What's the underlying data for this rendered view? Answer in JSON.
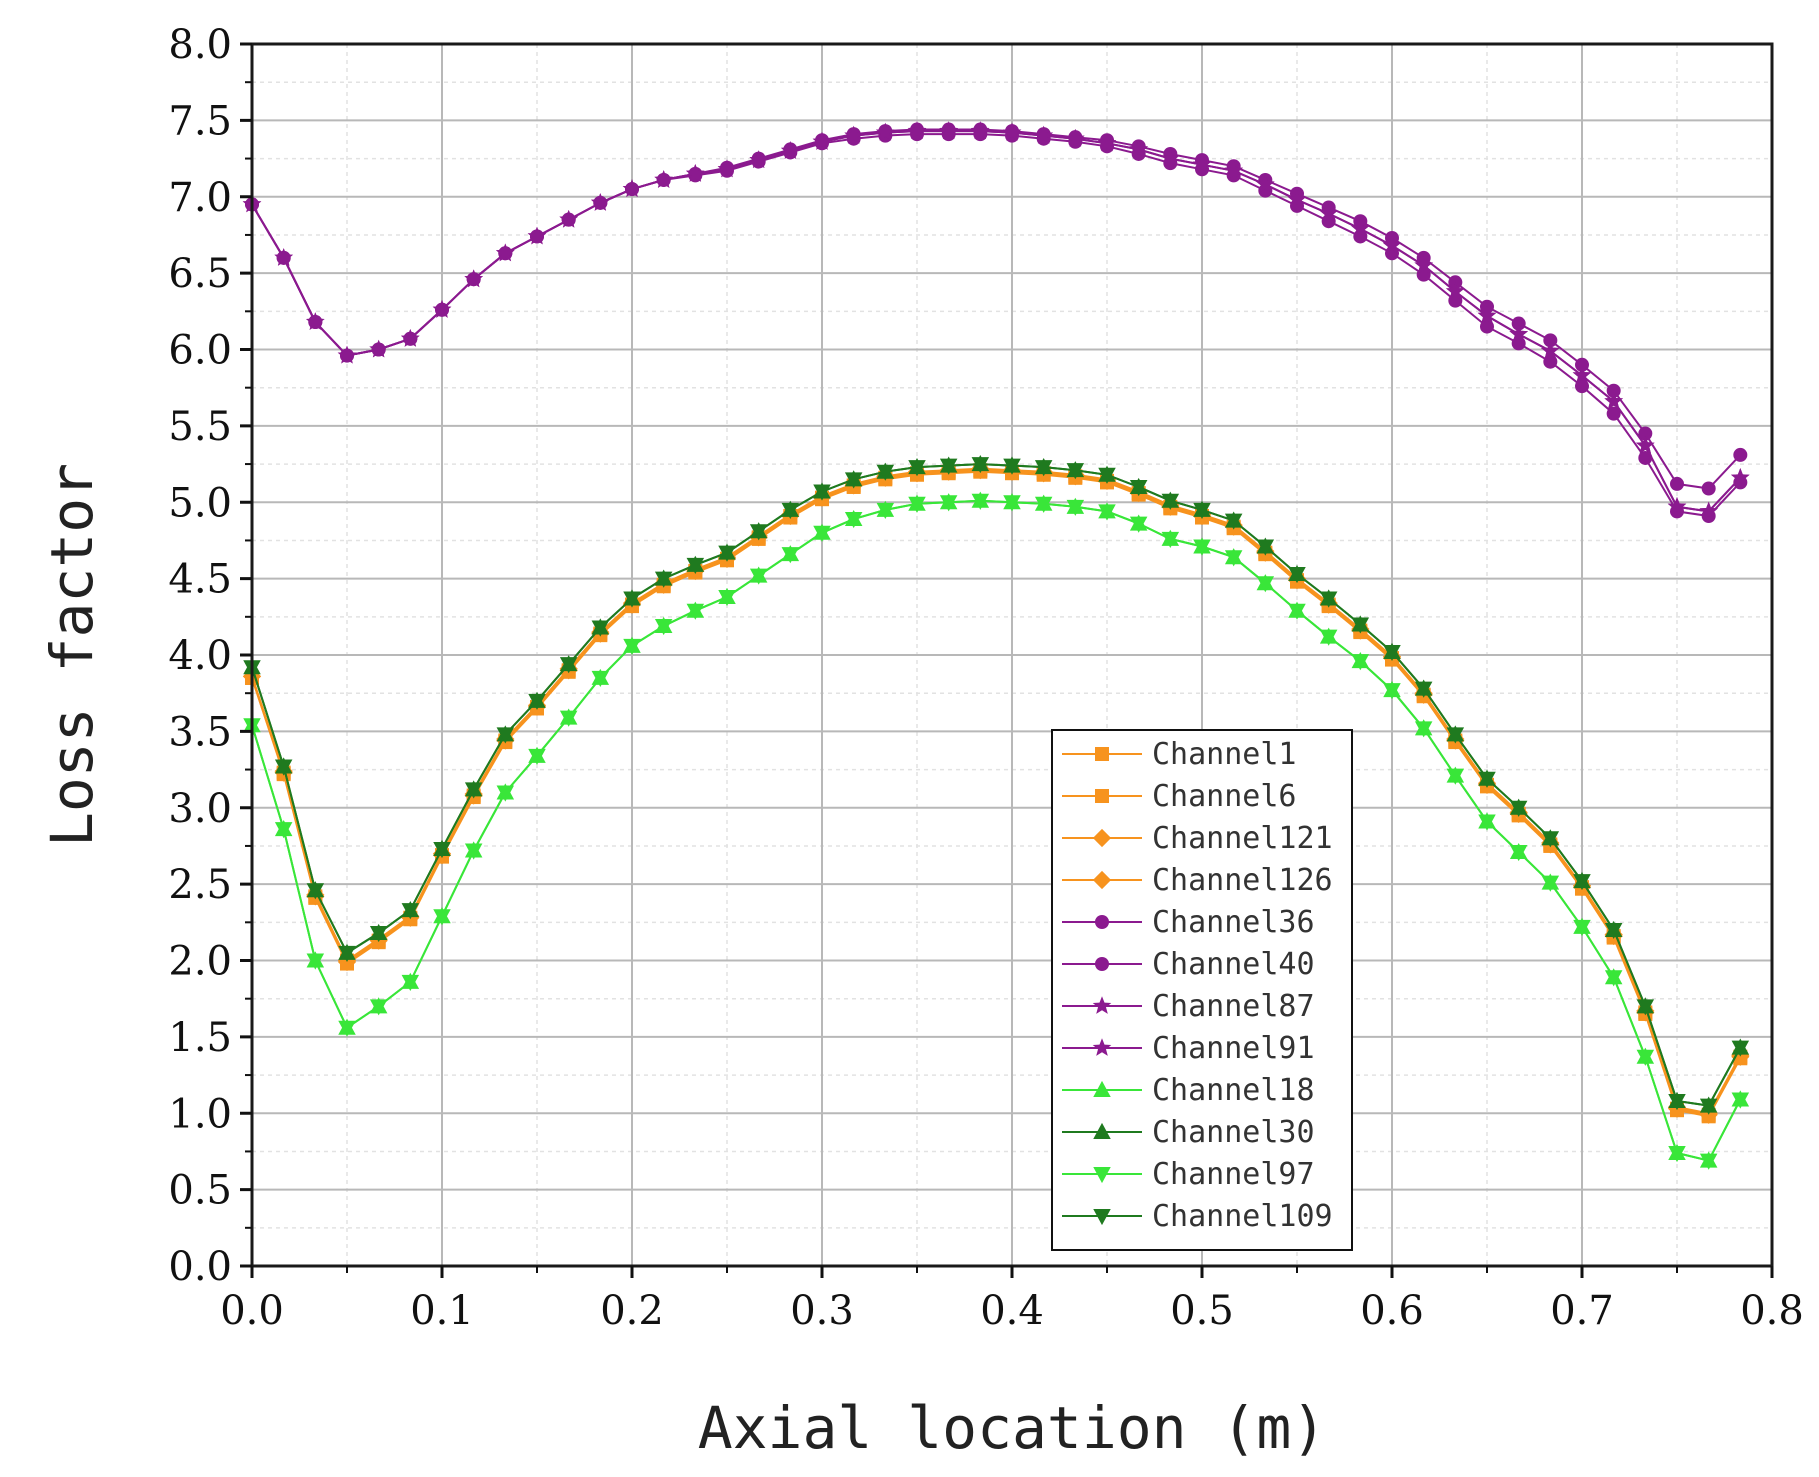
{
  "chart_data": {
    "type": "line",
    "title": "",
    "xlabel": "Axial location (m)",
    "ylabel": "Loss factor",
    "xlim": [
      0.0,
      0.8
    ],
    "ylim": [
      0.0,
      8.0
    ],
    "xticks": [
      "0.0",
      "0.1",
      "0.2",
      "0.3",
      "0.4",
      "0.5",
      "0.6",
      "0.7",
      "0.8"
    ],
    "yticks": [
      "0.0",
      "0.5",
      "1.0",
      "1.5",
      "2.0",
      "2.5",
      "3.0",
      "3.5",
      "4.0",
      "4.5",
      "5.0",
      "5.5",
      "6.0",
      "6.5",
      "7.0",
      "7.5",
      "8.0"
    ],
    "grid": true,
    "legend_position": "bottom-right",
    "x": [
      0.0,
      0.01667,
      0.03333,
      0.05,
      0.06667,
      0.08333,
      0.1,
      0.11667,
      0.13333,
      0.15,
      0.16667,
      0.18333,
      0.2,
      0.21667,
      0.23333,
      0.25,
      0.26667,
      0.28333,
      0.3,
      0.31667,
      0.33333,
      0.35,
      0.36667,
      0.38333,
      0.4,
      0.41667,
      0.43333,
      0.45,
      0.46667,
      0.48333,
      0.5,
      0.51667,
      0.53333,
      0.55,
      0.56667,
      0.58333,
      0.6,
      0.61667,
      0.63333,
      0.65,
      0.66667,
      0.68333,
      0.7,
      0.71667,
      0.73333,
      0.75,
      0.76667,
      0.78333
    ],
    "series": [
      {
        "name": "Channel1",
        "color": "#f7931e",
        "marker": "square",
        "values": [
          3.85,
          3.22,
          2.41,
          1.98,
          2.12,
          2.27,
          2.68,
          3.07,
          3.43,
          3.65,
          3.89,
          4.13,
          4.32,
          4.45,
          4.54,
          4.62,
          4.76,
          4.9,
          5.02,
          5.1,
          5.15,
          5.18,
          5.19,
          5.2,
          5.19,
          5.18,
          5.16,
          5.13,
          5.05,
          4.96,
          4.9,
          4.83,
          4.66,
          4.48,
          4.32,
          4.15,
          3.97,
          3.73,
          3.43,
          3.14,
          2.95,
          2.75,
          2.47,
          2.15,
          1.65,
          1.02,
          0.98,
          1.36
        ]
      },
      {
        "name": "Channel6",
        "color": "#f7931e",
        "marker": "square",
        "values": [
          3.85,
          3.23,
          2.42,
          2.0,
          2.13,
          2.28,
          2.69,
          3.08,
          3.44,
          3.66,
          3.9,
          4.14,
          4.33,
          4.46,
          4.55,
          4.63,
          4.77,
          4.91,
          5.03,
          5.11,
          5.16,
          5.19,
          5.2,
          5.21,
          5.2,
          5.19,
          5.17,
          5.14,
          5.06,
          4.97,
          4.91,
          4.84,
          4.67,
          4.49,
          4.33,
          4.16,
          3.98,
          3.74,
          3.44,
          3.15,
          2.96,
          2.76,
          2.48,
          2.16,
          1.66,
          1.03,
          0.99,
          1.37
        ]
      },
      {
        "name": "Channel121",
        "color": "#f7931e",
        "marker": "diamond",
        "values": [
          3.86,
          3.23,
          2.42,
          1.99,
          2.13,
          2.28,
          2.69,
          3.08,
          3.44,
          3.66,
          3.9,
          4.14,
          4.33,
          4.46,
          4.55,
          4.63,
          4.77,
          4.91,
          5.03,
          5.11,
          5.16,
          5.19,
          5.2,
          5.21,
          5.2,
          5.19,
          5.17,
          5.14,
          5.06,
          4.97,
          4.91,
          4.84,
          4.67,
          4.49,
          4.33,
          4.16,
          3.98,
          3.74,
          3.44,
          3.15,
          2.96,
          2.76,
          2.48,
          2.16,
          1.66,
          1.03,
          0.99,
          1.37
        ]
      },
      {
        "name": "Channel126",
        "color": "#f7931e",
        "marker": "diamond",
        "values": [
          3.86,
          3.24,
          2.43,
          2.0,
          2.14,
          2.29,
          2.7,
          3.09,
          3.45,
          3.67,
          3.91,
          4.15,
          4.34,
          4.47,
          4.56,
          4.64,
          4.78,
          4.92,
          5.04,
          5.12,
          5.17,
          5.2,
          5.21,
          5.22,
          5.21,
          5.2,
          5.18,
          5.15,
          5.07,
          4.98,
          4.92,
          4.85,
          4.68,
          4.5,
          4.34,
          4.17,
          3.99,
          3.75,
          3.45,
          3.16,
          2.97,
          2.77,
          2.49,
          2.17,
          1.67,
          1.04,
          1.0,
          1.38
        ]
      },
      {
        "name": "Channel36",
        "color": "#8b1a8f",
        "marker": "circle",
        "values": [
          6.95,
          6.6,
          6.18,
          5.96,
          6.0,
          6.07,
          6.26,
          6.46,
          6.63,
          6.74,
          6.85,
          6.96,
          7.05,
          7.11,
          7.15,
          7.19,
          7.25,
          7.31,
          7.37,
          7.41,
          7.43,
          7.44,
          7.44,
          7.44,
          7.43,
          7.41,
          7.39,
          7.37,
          7.33,
          7.28,
          7.24,
          7.2,
          7.11,
          7.02,
          6.93,
          6.84,
          6.73,
          6.6,
          6.44,
          6.28,
          6.17,
          6.06,
          5.9,
          5.73,
          5.45,
          5.12,
          5.09,
          5.31
        ]
      },
      {
        "name": "Channel40",
        "color": "#8b1a8f",
        "marker": "circle",
        "values": [
          6.95,
          6.6,
          6.18,
          5.96,
          6.0,
          6.07,
          6.26,
          6.46,
          6.63,
          6.74,
          6.85,
          6.96,
          7.05,
          7.11,
          7.14,
          7.17,
          7.23,
          7.29,
          7.35,
          7.38,
          7.4,
          7.41,
          7.41,
          7.41,
          7.4,
          7.38,
          7.36,
          7.33,
          7.28,
          7.22,
          7.18,
          7.14,
          7.04,
          6.94,
          6.84,
          6.74,
          6.63,
          6.49,
          6.32,
          6.15,
          6.04,
          5.92,
          5.76,
          5.58,
          5.29,
          4.94,
          4.91,
          5.13
        ]
      },
      {
        "name": "Channel87",
        "color": "#8b1a8f",
        "marker": "star",
        "values": [
          6.95,
          6.6,
          6.18,
          5.96,
          6.0,
          6.07,
          6.26,
          6.46,
          6.63,
          6.74,
          6.85,
          6.96,
          7.05,
          7.11,
          7.15,
          7.18,
          7.24,
          7.3,
          7.36,
          7.4,
          7.42,
          7.43,
          7.43,
          7.43,
          7.42,
          7.4,
          7.38,
          7.35,
          7.31,
          7.25,
          7.21,
          7.17,
          7.08,
          6.98,
          6.89,
          6.79,
          6.68,
          6.55,
          6.38,
          6.22,
          6.1,
          5.99,
          5.83,
          5.66,
          5.37,
          4.97,
          4.94,
          5.16
        ]
      },
      {
        "name": "Channel91",
        "color": "#8b1a8f",
        "marker": "star",
        "values": [
          6.95,
          6.6,
          6.18,
          5.96,
          6.0,
          6.07,
          6.26,
          6.46,
          6.63,
          6.74,
          6.85,
          6.96,
          7.05,
          7.11,
          7.15,
          7.18,
          7.24,
          7.3,
          7.36,
          7.4,
          7.42,
          7.43,
          7.43,
          7.43,
          7.42,
          7.4,
          7.38,
          7.35,
          7.31,
          7.25,
          7.21,
          7.17,
          7.08,
          6.98,
          6.89,
          6.79,
          6.68,
          6.55,
          6.38,
          6.22,
          6.1,
          5.99,
          5.83,
          5.66,
          5.37,
          4.97,
          4.94,
          5.16
        ]
      },
      {
        "name": "Channel18",
        "color": "#39e639",
        "marker": "triangle-up",
        "values": [
          3.54,
          2.86,
          2.0,
          1.56,
          1.7,
          1.86,
          2.29,
          2.72,
          3.1,
          3.34,
          3.59,
          3.85,
          4.06,
          4.19,
          4.29,
          4.38,
          4.52,
          4.66,
          4.8,
          4.89,
          4.95,
          4.99,
          5.0,
          5.01,
          5.0,
          4.99,
          4.97,
          4.94,
          4.86,
          4.76,
          4.71,
          4.64,
          4.47,
          4.29,
          4.12,
          3.96,
          3.77,
          3.52,
          3.21,
          2.91,
          2.71,
          2.51,
          2.22,
          1.89,
          1.37,
          0.74,
          0.69,
          1.09
        ]
      },
      {
        "name": "Channel30",
        "color": "#1f7a1f",
        "marker": "triangle-up",
        "values": [
          3.92,
          3.27,
          2.46,
          2.05,
          2.18,
          2.33,
          2.73,
          3.12,
          3.48,
          3.7,
          3.94,
          4.18,
          4.37,
          4.5,
          4.59,
          4.67,
          4.81,
          4.95,
          5.07,
          5.15,
          5.2,
          5.23,
          5.24,
          5.25,
          5.24,
          5.23,
          5.21,
          5.18,
          5.1,
          5.01,
          4.95,
          4.88,
          4.71,
          4.53,
          4.37,
          4.2,
          4.02,
          3.78,
          3.48,
          3.19,
          3.0,
          2.8,
          2.52,
          2.2,
          1.7,
          1.08,
          1.05,
          1.43
        ]
      },
      {
        "name": "Channel97",
        "color": "#39e639",
        "marker": "triangle-down",
        "values": [
          3.54,
          2.86,
          2.0,
          1.56,
          1.7,
          1.86,
          2.29,
          2.72,
          3.1,
          3.34,
          3.59,
          3.85,
          4.06,
          4.19,
          4.29,
          4.38,
          4.52,
          4.66,
          4.8,
          4.89,
          4.95,
          4.99,
          5.0,
          5.01,
          5.0,
          4.99,
          4.97,
          4.94,
          4.86,
          4.76,
          4.71,
          4.64,
          4.47,
          4.29,
          4.12,
          3.96,
          3.77,
          3.52,
          3.21,
          2.91,
          2.71,
          2.51,
          2.22,
          1.89,
          1.37,
          0.74,
          0.69,
          1.09
        ]
      },
      {
        "name": "Channel109",
        "color": "#1f7a1f",
        "marker": "triangle-down",
        "values": [
          3.92,
          3.27,
          2.46,
          2.05,
          2.18,
          2.33,
          2.73,
          3.12,
          3.48,
          3.7,
          3.94,
          4.18,
          4.37,
          4.5,
          4.59,
          4.67,
          4.81,
          4.95,
          5.07,
          5.15,
          5.2,
          5.23,
          5.24,
          5.25,
          5.24,
          5.23,
          5.21,
          5.18,
          5.1,
          5.01,
          4.95,
          4.88,
          4.71,
          4.53,
          4.37,
          4.2,
          4.02,
          3.78,
          3.48,
          3.19,
          3.0,
          2.8,
          2.52,
          2.2,
          1.7,
          1.08,
          1.05,
          1.43
        ]
      }
    ]
  }
}
